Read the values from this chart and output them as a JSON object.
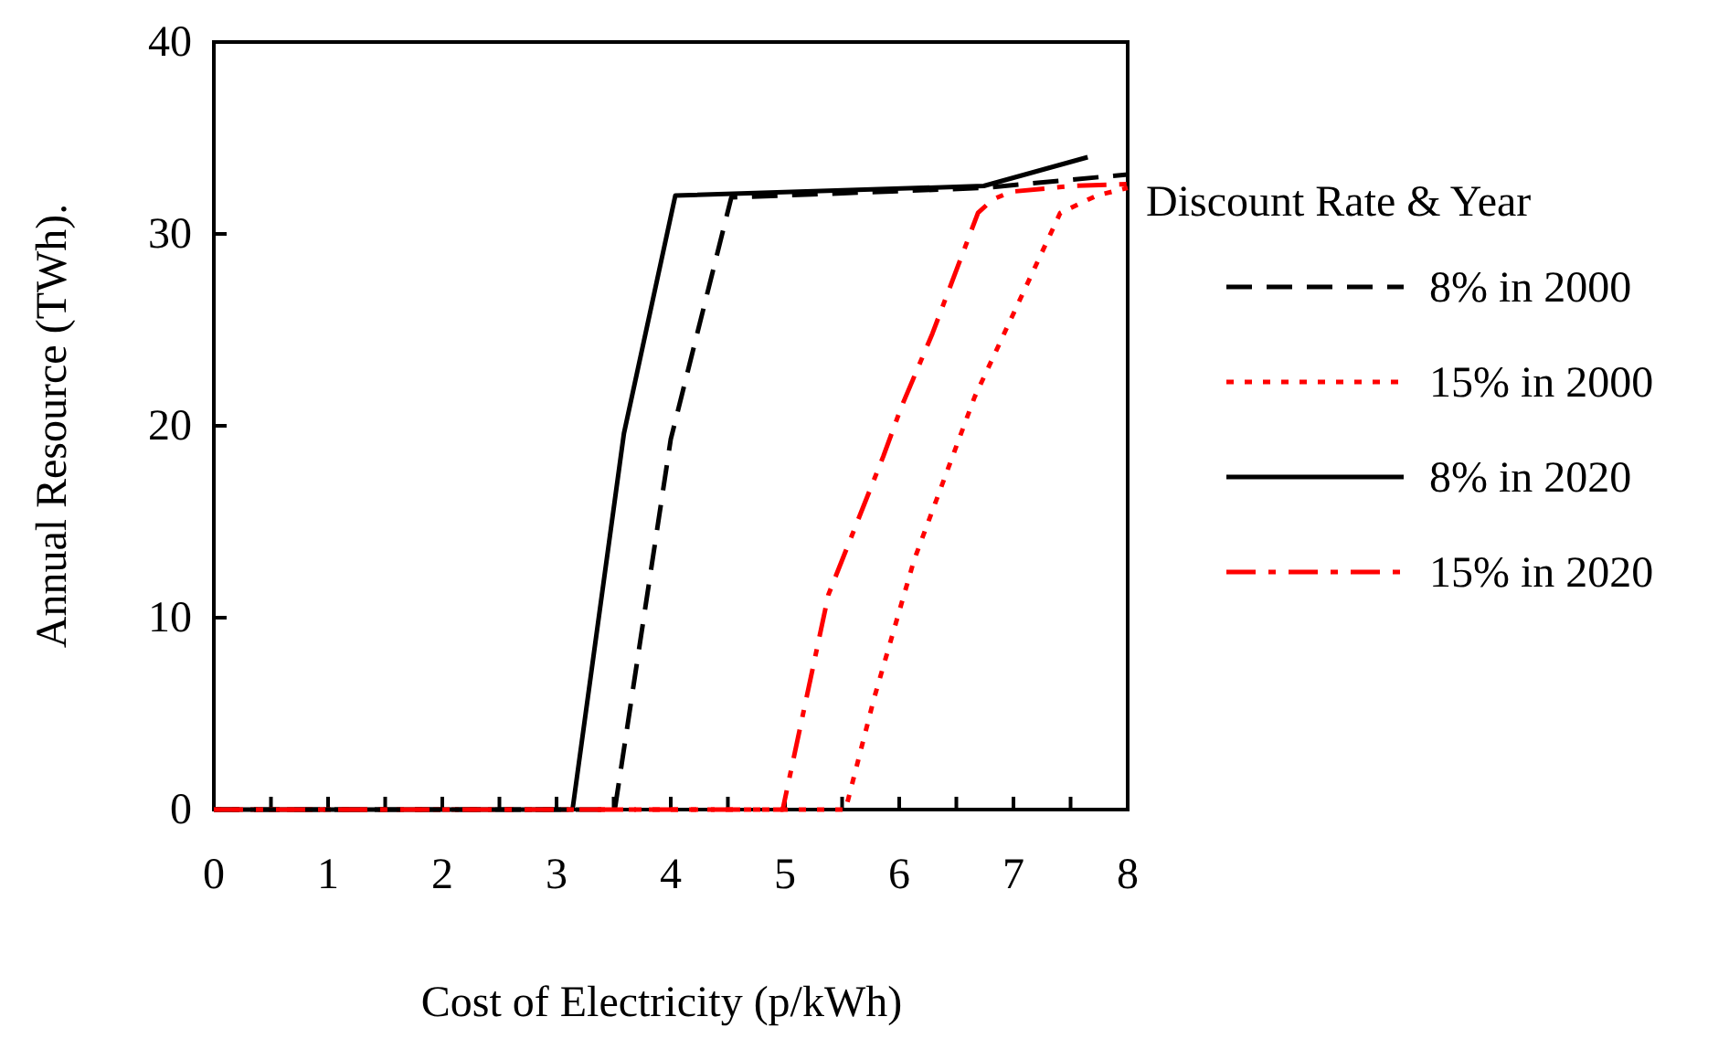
{
  "chart_data": {
    "type": "line",
    "xlabel": "Cost of Electricity (p/kWh)",
    "ylabel": "Annual Resource (TWh).",
    "legend_title": "Discount Rate & Year",
    "legend": "right",
    "marker": "none",
    "xlim": [
      0,
      8
    ],
    "ylim": [
      0,
      40
    ],
    "xticks": [
      0,
      {
        "value": 0.5,
        "label": null
      },
      1,
      {
        "value": 1.5,
        "label": null
      },
      2,
      {
        "value": 2.5,
        "label": null
      },
      3,
      {
        "value": 3.5,
        "label": null
      },
      4,
      {
        "value": 4.5,
        "label": null
      },
      5,
      {
        "value": 5.5,
        "label": null
      },
      6,
      {
        "value": 6.5,
        "label": null
      },
      7,
      {
        "value": 7.5,
        "label": null
      },
      8
    ],
    "yticks": [
      0,
      10,
      20,
      30,
      40
    ],
    "series": [
      {
        "name": "8% in 2000",
        "color": "#000000",
        "line_style": "dashed",
        "x": [
          0,
          3.51,
          4.0,
          4.53,
          6.74,
          8.0
        ],
        "values": [
          0,
          0,
          19.3,
          31.9,
          32.4,
          33.1
        ]
      },
      {
        "name": "15% in 2000",
        "color": "#ff0000",
        "line_style": "dotted",
        "x": [
          0,
          5.53,
          5.78,
          6.13,
          6.66,
          7.09,
          7.41,
          7.73,
          8.0
        ],
        "values": [
          0,
          0,
          5.8,
          13.0,
          21.5,
          27.0,
          31.1,
          32.0,
          32.4
        ]
      },
      {
        "name": "8% in 2020",
        "color": "#000000",
        "line_style": "solid",
        "x": [
          0,
          3.14,
          3.59,
          4.04,
          6.74,
          7.65
        ],
        "values": [
          0,
          0,
          19.6,
          32.0,
          32.5,
          34.0
        ]
      },
      {
        "name": "15% in 2020",
        "color": "#ff0000",
        "line_style": "dashdot",
        "x": [
          0,
          4.98,
          5.38,
          5.86,
          6.02,
          6.29,
          6.69,
          6.82,
          6.98,
          7.52,
          8.0
        ],
        "values": [
          0,
          0,
          11.2,
          18.4,
          21.0,
          24.8,
          31.1,
          31.8,
          32.2,
          32.5,
          32.6
        ]
      }
    ]
  }
}
